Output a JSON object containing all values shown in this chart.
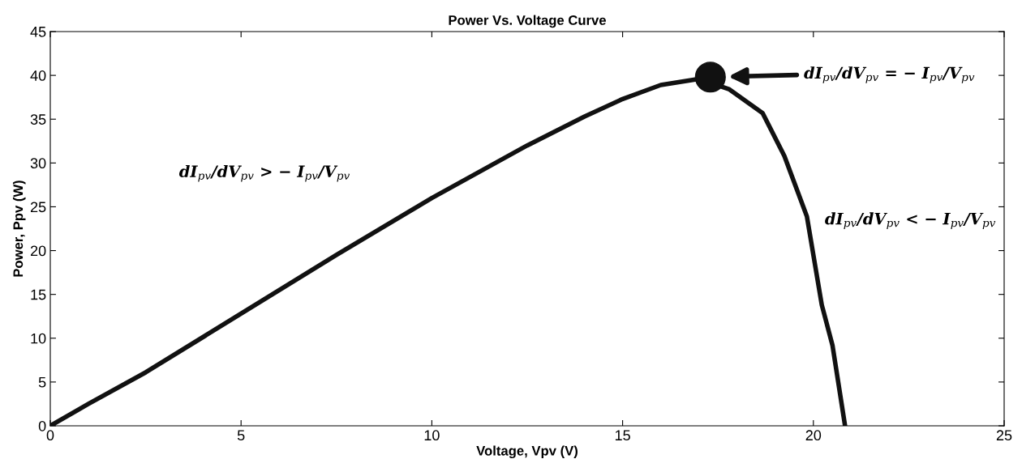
{
  "chart_data": {
    "type": "line",
    "title": "Power Vs. Voltage Curve",
    "xlabel": "Voltage, Vpv (V)",
    "ylabel": "Power, Ppv (W)",
    "xlim": [
      0,
      25
    ],
    "ylim": [
      0,
      45
    ],
    "xticks": [
      0,
      5,
      10,
      15,
      20,
      25
    ],
    "yticks": [
      0,
      5,
      10,
      15,
      20,
      25,
      30,
      35,
      40,
      45
    ],
    "grid": false,
    "legend": false,
    "series": [
      {
        "type": "line",
        "color": "#111111",
        "x": [
          0,
          1,
          2.5,
          5,
          7.5,
          10,
          12.5,
          14,
          15,
          16,
          17,
          17.8,
          18.67,
          19.24,
          19.83,
          20.22,
          20.5,
          20.83
        ],
        "values": [
          0,
          2.5,
          6.1,
          12.8,
          19.5,
          26,
          32,
          35.3,
          37.3,
          38.9,
          39.6,
          38.4,
          35.7,
          30.8,
          23.9,
          13.8,
          9.2,
          0
        ]
      },
      {
        "type": "scatter",
        "color": "#111111",
        "marker": "circle",
        "x": [
          17.3
        ],
        "values": [
          39.8
        ]
      }
    ],
    "annotations": [
      "dI$_{pv}$/dV$_{pv}$ = − I$_{pv}$/V$_{pv}$",
      "dI$_{pv}$/dV$_{pv}$ > − I$_{pv}$/V$_{pv}$",
      "dI$_{pv}$/dV$_{pv}$ < − I$_{pv}$/V$_{pv}$"
    ]
  }
}
